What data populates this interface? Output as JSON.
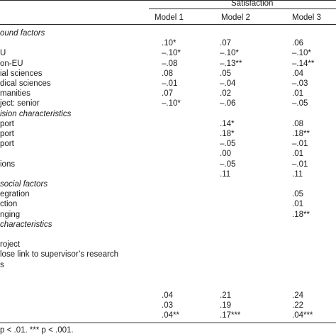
{
  "table": {
    "dependent_variable": "Satisfaction",
    "models": [
      "Model 1",
      "Model 2",
      "Model 3"
    ],
    "groups": [
      {
        "label": "ound factors",
        "rows": [
          {
            "label": "",
            "m1": ".10*",
            "m2": ".07",
            "m3": ".06"
          },
          {
            "label": "U",
            "m1": "–.10*",
            "m2": "–.10*",
            "m3": "–.10*"
          },
          {
            "label": "on-EU",
            "m1": "–.08",
            "m2": "–.13**",
            "m3": "–.14**"
          },
          {
            "label": "ial sciences",
            "m1": ".08",
            "m2": ".05",
            "m3": ".04"
          },
          {
            "label": "dical sciences",
            "m1": "–.01",
            "m2": "–.04",
            "m3": "–.03"
          },
          {
            "label": "manities",
            "m1": ".07",
            "m2": ".02",
            "m3": ".01"
          },
          {
            "label": "ject: senior",
            "m1": "–.10*",
            "m2": "–.06",
            "m3": "–.05"
          }
        ]
      },
      {
        "label": "ision characteristics",
        "rows": [
          {
            "label": "port",
            "m1": "",
            "m2": ".14*",
            "m3": ".08"
          },
          {
            "label": "port",
            "m1": "",
            "m2": ".18*",
            "m3": ".18**"
          },
          {
            "label": "port",
            "m1": "",
            "m2": "–.05",
            "m3": "–.01"
          },
          {
            "label": "",
            "m1": "",
            "m2": ".00",
            "m3": ".01"
          },
          {
            "label": "ions",
            "m1": "",
            "m2": "–.05",
            "m3": "–.01"
          },
          {
            "label": "",
            "m1": "",
            "m2": ".11",
            "m3": ".11"
          }
        ]
      },
      {
        "label": "social factors",
        "rows": [
          {
            "label": "egration",
            "m1": "",
            "m2": "",
            "m3": ".05"
          },
          {
            "label": "ction",
            "m1": "",
            "m2": "",
            "m3": ".01"
          },
          {
            "label": "nging",
            "m1": "",
            "m2": "",
            "m3": ".18**"
          }
        ]
      },
      {
        "label": "characteristics",
        "rows": [
          {
            "label": "",
            "m1": "",
            "m2": "",
            "m3": ""
          },
          {
            "label": "roject",
            "m1": "",
            "m2": "",
            "m3": ""
          },
          {
            "label": "lose link to supervisor’s research",
            "m1": "",
            "m2": "",
            "m3": ""
          },
          {
            "label": "s",
            "m1": "",
            "m2": "",
            "m3": ""
          }
        ]
      }
    ],
    "summary": [
      {
        "label": "",
        "m1": ".04",
        "m2": ".21",
        "m3": ".24"
      },
      {
        "label": "",
        "m1": ".03",
        "m2": ".19",
        "m3": ".22"
      },
      {
        "label": "",
        "m1": ".04**",
        "m2": ".17***",
        "m3": ".04***"
      }
    ],
    "footnote": "p < .01. *** p < .001."
  }
}
